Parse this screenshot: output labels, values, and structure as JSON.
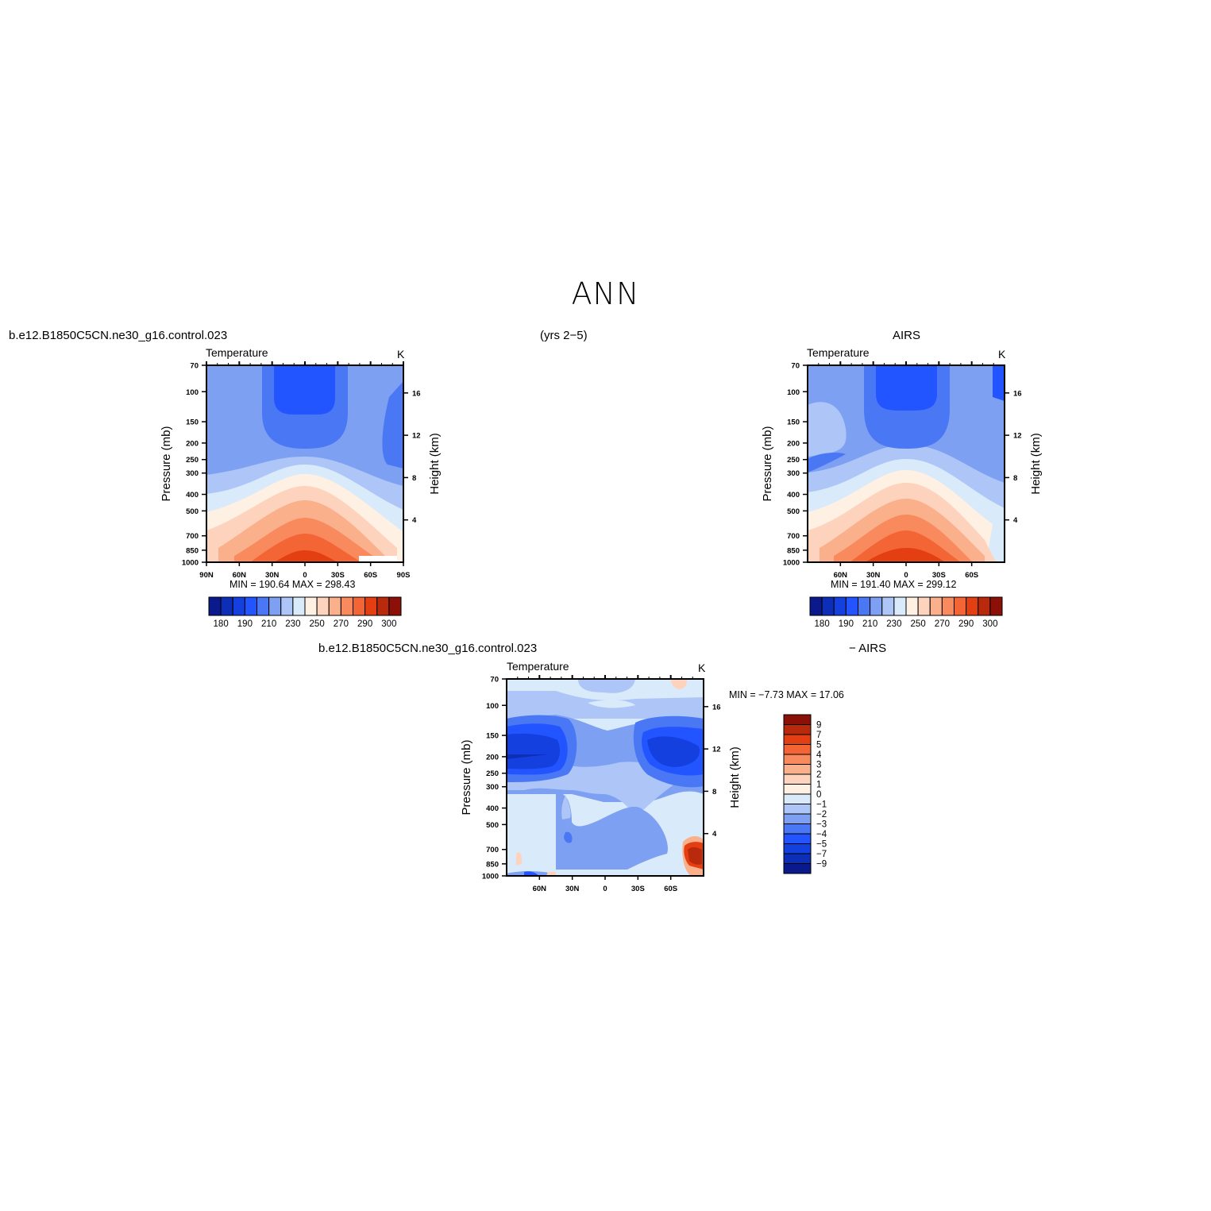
{
  "header": {
    "title": "ANN",
    "case_name": "b.e12.B1850C5CN.ne30_g16.control.023",
    "years": "(yrs 2−5)",
    "obs_name": "AIRS",
    "diff_case_name": "b.e12.B1850C5CN.ne30_g16.control.023",
    "diff_obs_name": "− AIRS"
  },
  "panels": {
    "model": {
      "variable": "Temperature",
      "units": "K",
      "min_max": "MIN =  190.64    MAX =  298.43"
    },
    "obs": {
      "variable": "Temperature",
      "units": "K",
      "min_max": "MIN =  191.40    MAX =  299.12"
    },
    "diff": {
      "variable": "Temperature",
      "units": "K",
      "min_max": "MIN =   −7.73    MAX =   17.06"
    }
  },
  "axes": {
    "ylabel_left": "Pressure (mb)",
    "ylabel_right": "Height (km)",
    "pressure_ticks": [
      "70",
      "100",
      "150",
      "200",
      "250",
      "300",
      "400",
      "500",
      "700",
      "850",
      "1000"
    ],
    "height_ticks": [
      "4",
      "8",
      "12",
      "16"
    ],
    "lat_ticks_full": [
      "90N",
      "60N",
      "30N",
      "0",
      "30S",
      "60S",
      "90S"
    ],
    "lat_ticks_short": [
      "60N",
      "30N",
      "0",
      "30S",
      "60S"
    ]
  },
  "colorbars": {
    "abs_labels": [
      "180",
      "190",
      "210",
      "230",
      "250",
      "270",
      "290",
      "300"
    ],
    "abs_colors": [
      "#0a1a8c",
      "#0d2fb8",
      "#1440e0",
      "#2255ff",
      "#4a78f5",
      "#7ea0f2",
      "#aec6f7",
      "#d9eafb",
      "#fff0e4",
      "#fdd3bd",
      "#fbb08c",
      "#f98a5e",
      "#f36534",
      "#e33f13",
      "#b92a0c",
      "#8b1008"
    ],
    "diff_labels": [
      "9",
      "7",
      "5",
      "4",
      "3",
      "2",
      "1",
      "0",
      "−1",
      "−2",
      "−3",
      "−4",
      "−5",
      "−7",
      "−9"
    ],
    "diff_colors": [
      "#8b1008",
      "#b92a0c",
      "#e33f13",
      "#f36534",
      "#f98a5e",
      "#fbb08c",
      "#fdd3bd",
      "#fff0e4",
      "#d9eafb",
      "#aec6f7",
      "#7ea0f2",
      "#4a78f5",
      "#2255ff",
      "#1440e0",
      "#0d2fb8",
      "#0a1a8c"
    ]
  },
  "chart_data": [
    {
      "type": "heatmap",
      "title": "Temperature",
      "units": "K",
      "x": [
        "90N",
        "60N",
        "30N",
        "0",
        "30S",
        "60S",
        "90S"
      ],
      "y_pressure_mb": [
        70,
        100,
        150,
        200,
        250,
        300,
        400,
        500,
        700,
        850,
        1000
      ],
      "min": 190.64,
      "max": 298.43,
      "xlabel": "",
      "ylabel": "Pressure (mb)",
      "y2label": "Height (km)"
    },
    {
      "type": "heatmap",
      "title": "Temperature",
      "units": "K",
      "x": [
        "60N",
        "30N",
        "0",
        "30S",
        "60S"
      ],
      "y_pressure_mb": [
        70,
        100,
        150,
        200,
        250,
        300,
        400,
        500,
        700,
        850,
        1000
      ],
      "min": 191.4,
      "max": 299.12,
      "xlabel": "",
      "ylabel": "Pressure (mb)",
      "y2label": "Height (km)"
    },
    {
      "type": "heatmap",
      "title": "Temperature",
      "units": "K",
      "x": [
        "60N",
        "30N",
        "0",
        "30S",
        "60S"
      ],
      "y_pressure_mb": [
        70,
        100,
        150,
        200,
        250,
        300,
        400,
        500,
        700,
        850,
        1000
      ],
      "min": -7.73,
      "max": 17.06,
      "xlabel": "",
      "ylabel": "Pressure (mb)",
      "y2label": "Height (km)"
    }
  ]
}
